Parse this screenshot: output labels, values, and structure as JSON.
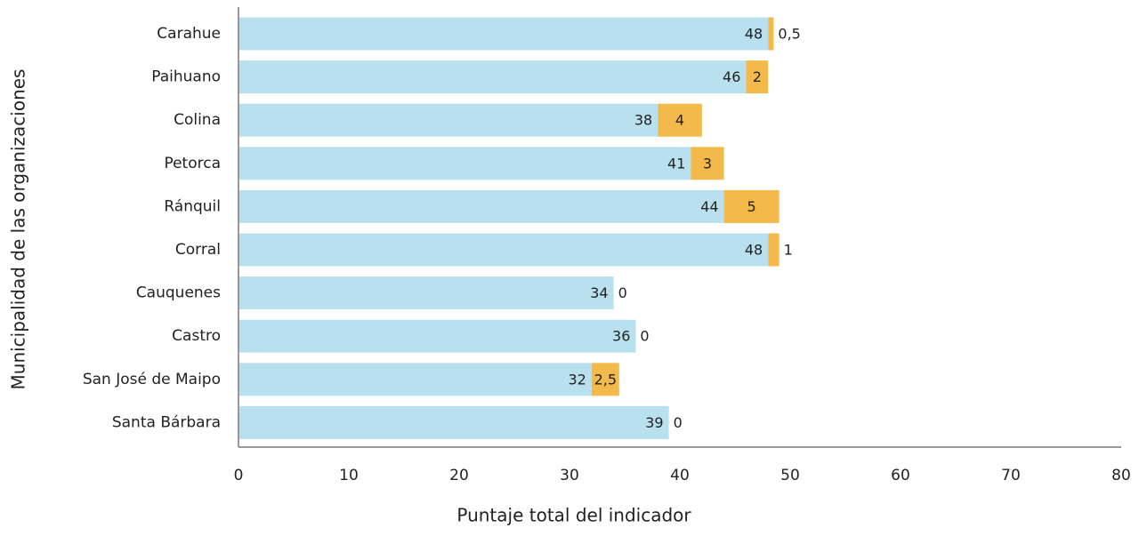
{
  "chart_data": {
    "type": "stacked-barh",
    "x_label": "Puntaje total del indicador",
    "y_label": "Municipalidad de las organizaciones",
    "categories": [
      "Carahue",
      "Paihuano",
      "Colina",
      "Petorca",
      "Ránquil",
      "Corral",
      "Cauquenes",
      "Castro",
      "San José de Maipo",
      "Santa Bárbara"
    ],
    "series": [
      {
        "color": "#b9e0ef",
        "values": [
          48,
          46,
          38,
          41,
          44,
          48,
          34,
          36,
          32,
          39
        ]
      },
      {
        "color": "#f3b94a",
        "values": [
          0.5,
          2,
          4,
          3,
          5,
          1,
          0,
          0,
          2.5,
          0
        ],
        "value_labels": [
          "0,5",
          "2",
          "4",
          "3",
          "5",
          "1",
          "0",
          "0",
          "2,5",
          "0"
        ]
      }
    ],
    "xlim": [
      0,
      80
    ],
    "xticks": [
      0,
      10,
      20,
      30,
      40,
      50,
      60,
      70,
      80
    ]
  }
}
